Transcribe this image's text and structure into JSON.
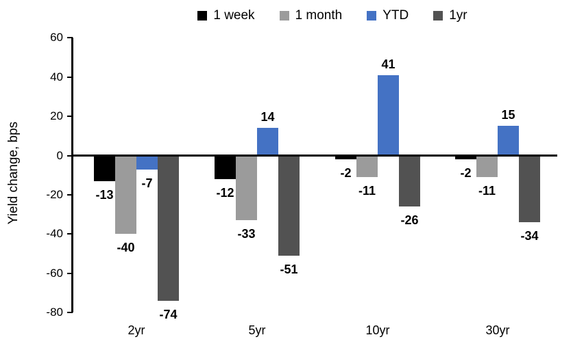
{
  "chart_data": {
    "type": "bar",
    "title": "",
    "xlabel": "",
    "ylabel": "Yield change, bps",
    "categories": [
      "2yr",
      "5yr",
      "10yr",
      "30yr"
    ],
    "series": [
      {
        "name": "1 week",
        "color": "#000000",
        "values": [
          -13,
          -12,
          -2,
          -2
        ]
      },
      {
        "name": "1 month",
        "color": "#9B9B9B",
        "values": [
          -40,
          -33,
          -11,
          -11
        ]
      },
      {
        "name": "YTD",
        "color": "#4472C4",
        "values": [
          -7,
          14,
          41,
          15
        ]
      },
      {
        "name": "1yr",
        "color": "#525252",
        "values": [
          -74,
          -51,
          -26,
          -34
        ]
      }
    ],
    "data_labels": true,
    "ylim": [
      -80,
      60
    ],
    "ytick_interval": 20,
    "yticks": [
      60,
      40,
      20,
      0,
      -20,
      -40,
      -60,
      -80
    ],
    "legend_position": "top",
    "grid": false,
    "axis_color": "#000000",
    "label_color": "#000000"
  }
}
